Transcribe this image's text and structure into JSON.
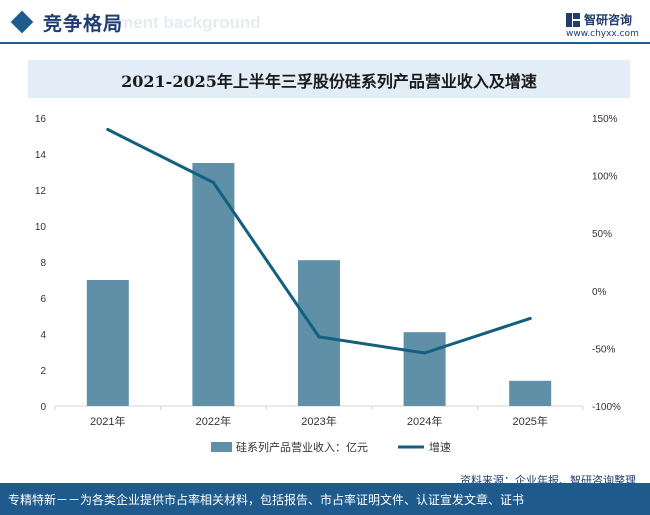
{
  "header": {
    "title": "竞争格局",
    "ghost_text": "ment background"
  },
  "logo": {
    "name": "智研咨询",
    "url": "www.chyxx.com"
  },
  "chart_data": {
    "type": "bar",
    "title": "2021-2025年上半年三孚股份硅系列产品营业收入及增速",
    "categories": [
      "2021年",
      "2022年",
      "2023年",
      "2024年",
      "2025年"
    ],
    "series": [
      {
        "name": "硅系列产品营业收入：亿元",
        "type": "bar",
        "axis": "left",
        "values": [
          7.0,
          13.5,
          8.1,
          4.1,
          1.4
        ],
        "color": "#5f90a8"
      },
      {
        "name": "增速",
        "type": "line",
        "axis": "right",
        "values": [
          140,
          94,
          -40,
          -54,
          -24
        ],
        "color": "#12607e"
      }
    ],
    "y_left": {
      "ylim": [
        0,
        16
      ],
      "ticks": [
        "0",
        "2",
        "4",
        "6",
        "8",
        "10",
        "12",
        "14",
        "16"
      ]
    },
    "y_right": {
      "ylim": [
        -100,
        150
      ],
      "ticks": [
        "-100%",
        "-50%",
        "0%",
        "50%",
        "100%",
        "150%"
      ]
    },
    "legend_position": "bottom",
    "grid": false
  },
  "source": "资料来源：企业年报、智研咨询整理",
  "footer": "专精特新－－为各类企业提供市占率相关材料，包括报告、市占率证明文件、认证宣发文章、证书"
}
